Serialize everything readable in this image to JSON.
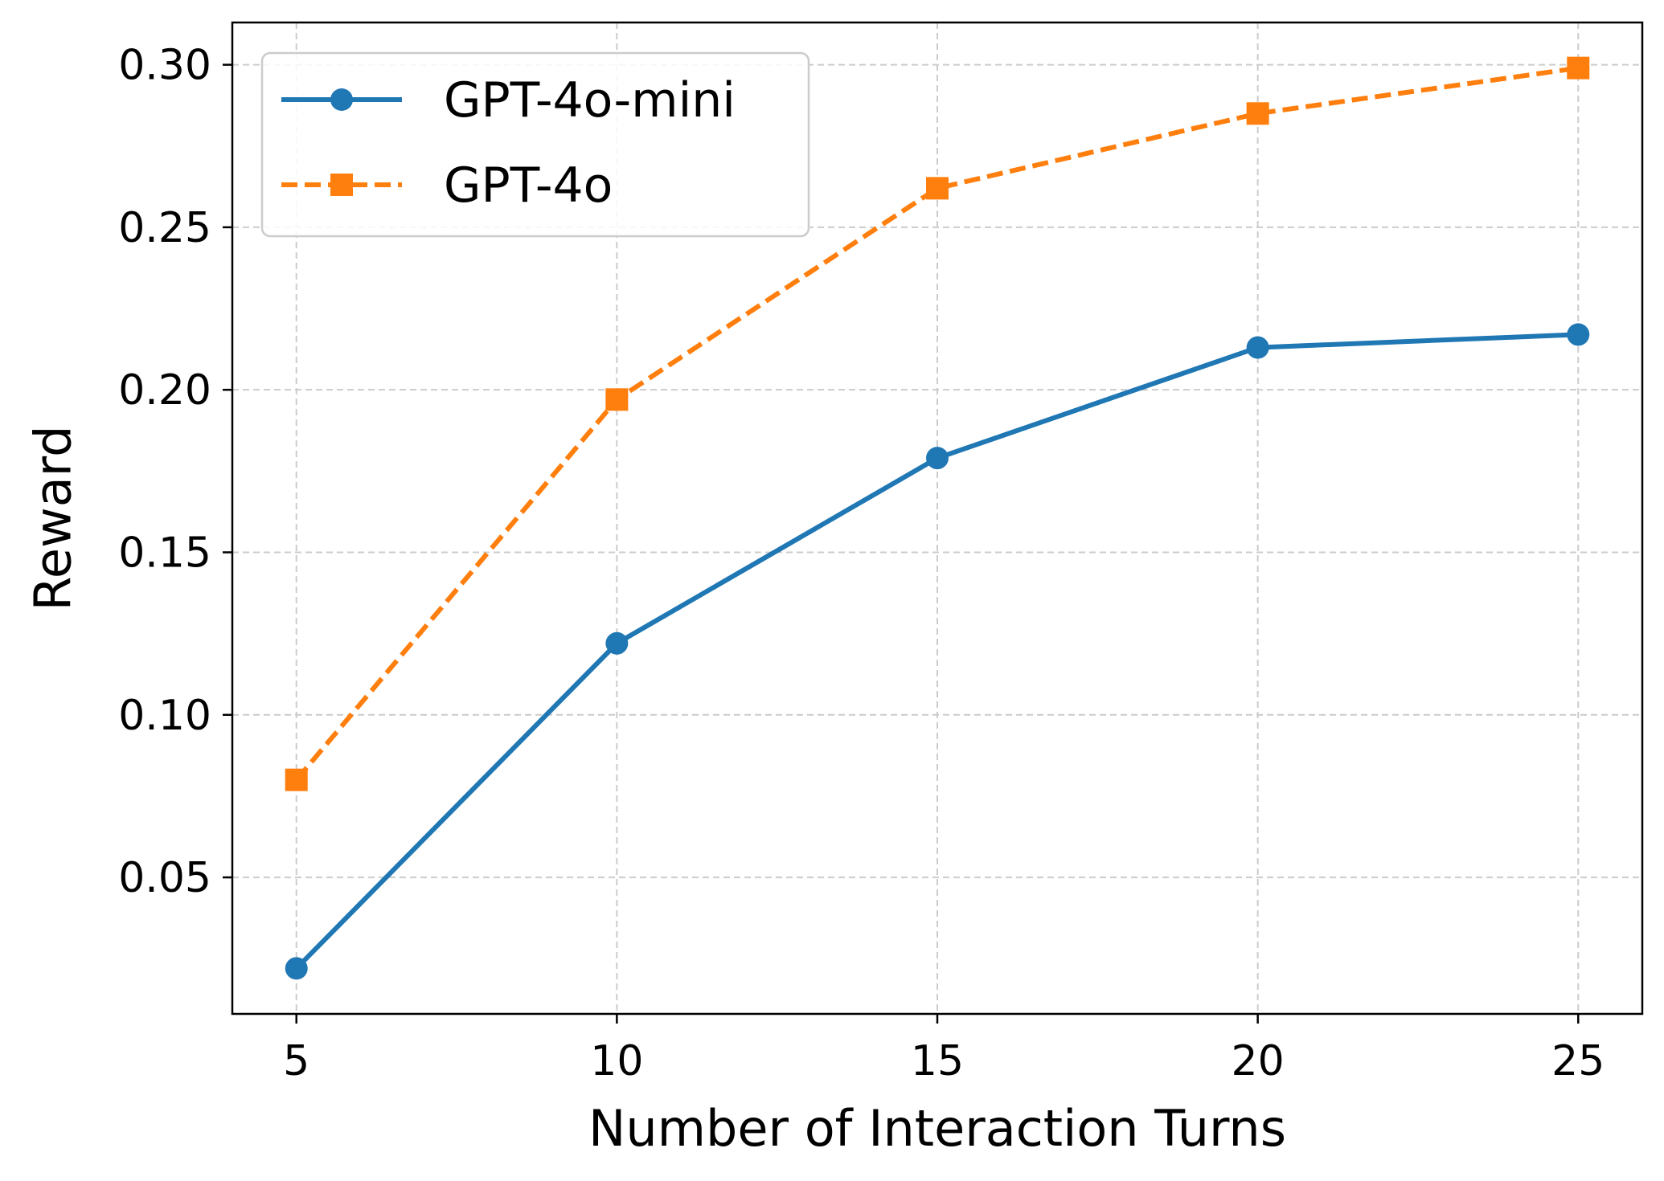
{
  "chart_data": {
    "type": "line",
    "title": "",
    "xlabel": "Number of Interaction Turns",
    "ylabel": "Reward",
    "x": [
      5,
      10,
      15,
      20,
      25
    ],
    "xticks": [
      "5",
      "10",
      "15",
      "20",
      "25"
    ],
    "yticks": [
      "0.05",
      "0.10",
      "0.15",
      "0.20",
      "0.25",
      "0.30"
    ],
    "xlim": [
      4,
      26
    ],
    "ylim": [
      0.008,
      0.313
    ],
    "grid": true,
    "legend_position": "upper-left",
    "series": [
      {
        "name": "GPT-4o-mini",
        "values": [
          0.022,
          0.122,
          0.179,
          0.213,
          0.217
        ],
        "color": "#1f77b4",
        "marker": "circle",
        "linestyle": "solid"
      },
      {
        "name": "GPT-4o",
        "values": [
          0.08,
          0.197,
          0.262,
          0.285,
          0.299
        ],
        "color": "#ff7f0e",
        "marker": "square",
        "linestyle": "dashed"
      }
    ]
  }
}
